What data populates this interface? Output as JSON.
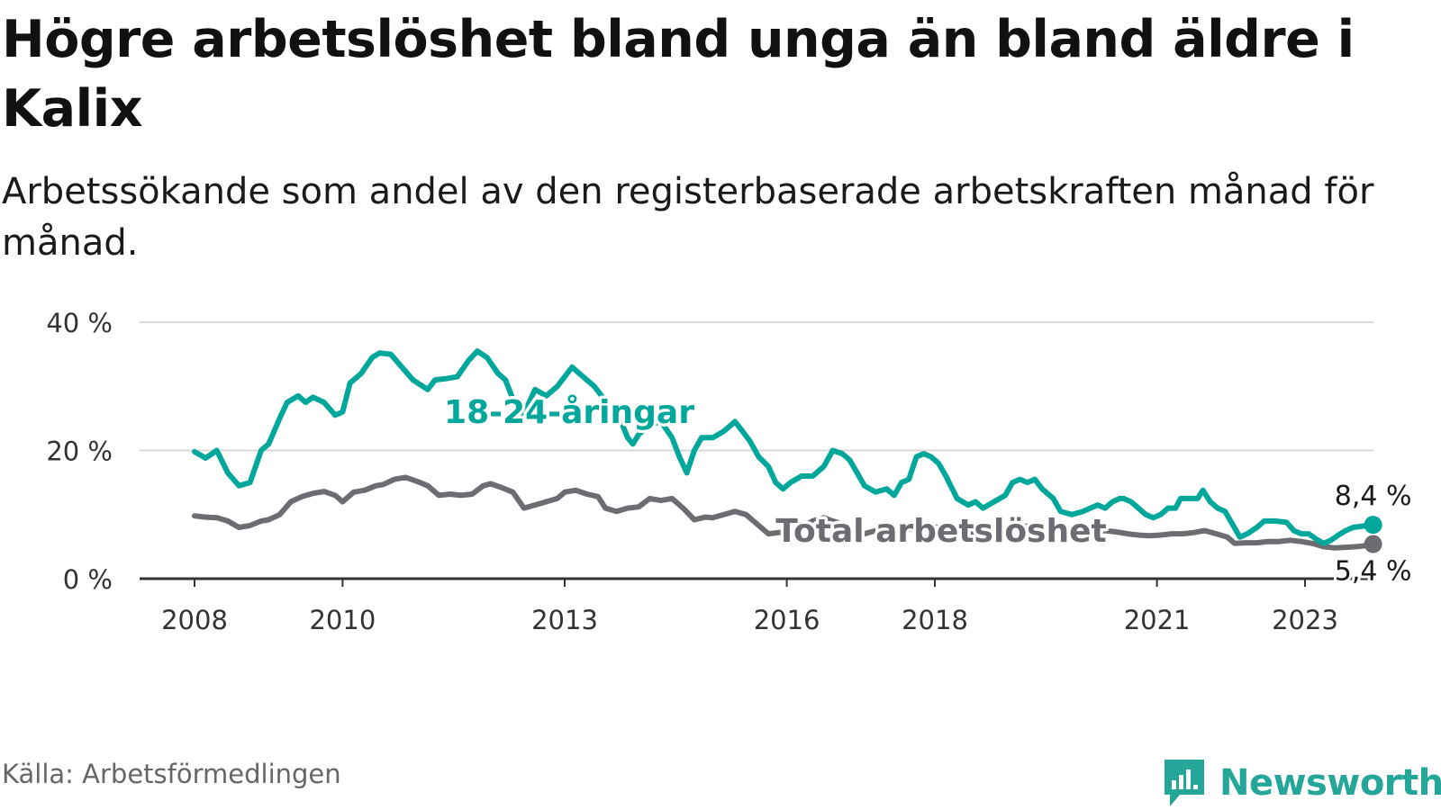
{
  "title": "Högre arbetslöshet bland unga än bland äldre i Kalix",
  "subtitle": "Arbetssökande som andel av den registerbaserade arbetskraften månad för månad.",
  "source": "Källa: Arbetsförmedlingen",
  "brand": {
    "name": "Newsworthy",
    "color": "#24a699"
  },
  "colors": {
    "youth": "#00a79a",
    "total": "#6d6c73",
    "grid": "#d9d9d9",
    "axis": "#333333"
  },
  "chart_data": {
    "type": "line",
    "xlabel": "",
    "ylabel": "",
    "ylim": [
      0,
      40
    ],
    "xlim": [
      2008,
      2023.25
    ],
    "y_ticks": [
      0,
      20,
      40
    ],
    "y_tick_labels": [
      "0 %",
      "20 %",
      "40 %"
    ],
    "x_ticks": [
      2008,
      2010,
      2013,
      2016,
      2018,
      2021,
      2023
    ],
    "x_tick_labels": [
      "2008",
      "2010",
      "2013",
      "2016",
      "2018",
      "2021",
      "2023"
    ],
    "series": [
      {
        "name": "18-24-åringar",
        "label": "18-24-åringar",
        "end_label": "8,4 %",
        "points": [
          [
            2008.0,
            19.8
          ],
          [
            2008.15,
            18.8
          ],
          [
            2008.3,
            20.0
          ],
          [
            2008.45,
            16.5
          ],
          [
            2008.6,
            14.5
          ],
          [
            2008.75,
            15.0
          ],
          [
            2008.9,
            20.0
          ],
          [
            2009.0,
            21.0
          ],
          [
            2009.15,
            25.0
          ],
          [
            2009.25,
            27.5
          ],
          [
            2009.4,
            28.5
          ],
          [
            2009.5,
            27.5
          ],
          [
            2009.6,
            28.3
          ],
          [
            2009.75,
            27.5
          ],
          [
            2009.9,
            25.5
          ],
          [
            2010.0,
            26.0
          ],
          [
            2010.1,
            30.5
          ],
          [
            2010.25,
            32.0
          ],
          [
            2010.4,
            34.5
          ],
          [
            2010.5,
            35.2
          ],
          [
            2010.65,
            35.0
          ],
          [
            2010.8,
            33.0
          ],
          [
            2010.95,
            31.0
          ],
          [
            2011.15,
            29.5
          ],
          [
            2011.25,
            31.0
          ],
          [
            2011.4,
            31.2
          ],
          [
            2011.55,
            31.5
          ],
          [
            2011.7,
            34.0
          ],
          [
            2011.82,
            35.5
          ],
          [
            2011.95,
            34.5
          ],
          [
            2012.1,
            32.0
          ],
          [
            2012.2,
            31.0
          ],
          [
            2012.3,
            28.0
          ],
          [
            2012.4,
            25.0
          ],
          [
            2012.5,
            27.0
          ],
          [
            2012.6,
            29.5
          ],
          [
            2012.75,
            28.5
          ],
          [
            2012.9,
            30.0
          ],
          [
            2013.0,
            31.5
          ],
          [
            2013.1,
            33.0
          ],
          [
            2013.25,
            31.5
          ],
          [
            2013.4,
            30.0
          ],
          [
            2013.5,
            28.5
          ],
          [
            2013.6,
            27.0
          ],
          [
            2013.7,
            26.0
          ],
          [
            2013.78,
            24.0
          ],
          [
            2013.85,
            22.0
          ],
          [
            2013.92,
            21.0
          ],
          [
            2014.0,
            22.5
          ],
          [
            2014.15,
            24.0
          ],
          [
            2014.3,
            24.5
          ],
          [
            2014.45,
            22.0
          ],
          [
            2014.55,
            19.0
          ],
          [
            2014.65,
            16.5
          ],
          [
            2014.75,
            20.0
          ],
          [
            2014.85,
            22.0
          ],
          [
            2015.0,
            22.0
          ],
          [
            2015.15,
            23.0
          ],
          [
            2015.3,
            24.5
          ],
          [
            2015.4,
            23.0
          ],
          [
            2015.5,
            21.5
          ],
          [
            2015.62,
            19.0
          ],
          [
            2015.75,
            17.5
          ],
          [
            2015.85,
            15.0
          ],
          [
            2015.95,
            14.0
          ],
          [
            2016.05,
            15.0
          ],
          [
            2016.2,
            16.0
          ],
          [
            2016.35,
            16.0
          ],
          [
            2016.5,
            17.5
          ],
          [
            2016.62,
            20.0
          ],
          [
            2016.75,
            19.5
          ],
          [
            2016.85,
            18.5
          ],
          [
            2016.95,
            16.5
          ],
          [
            2017.05,
            14.5
          ],
          [
            2017.2,
            13.5
          ],
          [
            2017.35,
            14.0
          ],
          [
            2017.45,
            13.0
          ],
          [
            2017.55,
            15.0
          ],
          [
            2017.65,
            15.5
          ],
          [
            2017.75,
            19.0
          ],
          [
            2017.85,
            19.5
          ],
          [
            2017.95,
            19.0
          ],
          [
            2018.05,
            18.0
          ],
          [
            2018.15,
            16.0
          ],
          [
            2018.3,
            12.5
          ],
          [
            2018.45,
            11.5
          ],
          [
            2018.55,
            12.0
          ],
          [
            2018.65,
            11.0
          ],
          [
            2018.8,
            12.0
          ],
          [
            2018.95,
            13.0
          ],
          [
            2019.05,
            15.0
          ],
          [
            2019.15,
            15.5
          ],
          [
            2019.25,
            15.0
          ],
          [
            2019.35,
            15.5
          ],
          [
            2019.45,
            14.0
          ],
          [
            2019.6,
            12.5
          ],
          [
            2019.7,
            10.5
          ],
          [
            2019.85,
            10.0
          ],
          [
            2020.0,
            10.5
          ],
          [
            2020.1,
            11.0
          ],
          [
            2020.2,
            11.5
          ],
          [
            2020.3,
            11.0
          ],
          [
            2020.4,
            12.0
          ],
          [
            2020.5,
            12.5
          ],
          [
            2020.55,
            12.5
          ],
          [
            2020.65,
            12.0
          ],
          [
            2020.75,
            11.0
          ],
          [
            2020.85,
            10.0
          ],
          [
            2020.95,
            9.5
          ],
          [
            2021.05,
            10.0
          ],
          [
            2021.15,
            11.0
          ],
          [
            2021.25,
            11.0
          ],
          [
            2021.32,
            12.5
          ],
          [
            2021.45,
            12.5
          ],
          [
            2021.55,
            12.5
          ],
          [
            2021.62,
            13.8
          ],
          [
            2021.72,
            12.0
          ],
          [
            2021.82,
            11.0
          ],
          [
            2021.92,
            10.5
          ],
          [
            2022.02,
            8.5
          ],
          [
            2022.12,
            6.5
          ],
          [
            2022.22,
            7.0
          ],
          [
            2022.35,
            8.0
          ],
          [
            2022.45,
            9.0
          ],
          [
            2022.6,
            9.0
          ],
          [
            2022.75,
            8.8
          ],
          [
            2022.85,
            7.5
          ],
          [
            2022.95,
            7.0
          ],
          [
            2023.05,
            7.0
          ],
          [
            2023.15,
            6.2
          ],
          [
            2023.25,
            5.5
          ],
          [
            2023.35,
            6.0
          ],
          [
            2023.45,
            6.8
          ],
          [
            2023.55,
            7.5
          ],
          [
            2023.65,
            8.0
          ],
          [
            2023.78,
            8.2
          ],
          [
            2023.92,
            8.4
          ]
        ]
      },
      {
        "name": "Total arbetslöshet",
        "label": "Total arbetslöshet",
        "end_label": "5,4 %",
        "points": [
          [
            2008.0,
            9.8
          ],
          [
            2008.15,
            9.6
          ],
          [
            2008.3,
            9.5
          ],
          [
            2008.45,
            9.0
          ],
          [
            2008.6,
            8.0
          ],
          [
            2008.75,
            8.3
          ],
          [
            2008.9,
            9.0
          ],
          [
            2009.0,
            9.2
          ],
          [
            2009.15,
            10.0
          ],
          [
            2009.3,
            12.0
          ],
          [
            2009.45,
            12.8
          ],
          [
            2009.6,
            13.3
          ],
          [
            2009.75,
            13.6
          ],
          [
            2009.9,
            13.0
          ],
          [
            2010.0,
            12.0
          ],
          [
            2010.15,
            13.5
          ],
          [
            2010.3,
            13.8
          ],
          [
            2010.45,
            14.5
          ],
          [
            2010.55,
            14.7
          ],
          [
            2010.7,
            15.5
          ],
          [
            2010.85,
            15.8
          ],
          [
            2011.0,
            15.2
          ],
          [
            2011.15,
            14.5
          ],
          [
            2011.3,
            13.0
          ],
          [
            2011.45,
            13.2
          ],
          [
            2011.6,
            13.0
          ],
          [
            2011.75,
            13.2
          ],
          [
            2011.9,
            14.5
          ],
          [
            2012.0,
            14.8
          ],
          [
            2012.15,
            14.2
          ],
          [
            2012.3,
            13.5
          ],
          [
            2012.45,
            11.0
          ],
          [
            2012.6,
            11.5
          ],
          [
            2012.75,
            12.0
          ],
          [
            2012.9,
            12.5
          ],
          [
            2013.0,
            13.5
          ],
          [
            2013.15,
            13.8
          ],
          [
            2013.3,
            13.2
          ],
          [
            2013.45,
            12.8
          ],
          [
            2013.55,
            11.0
          ],
          [
            2013.7,
            10.5
          ],
          [
            2013.85,
            11.0
          ],
          [
            2014.0,
            11.2
          ],
          [
            2014.15,
            12.5
          ],
          [
            2014.3,
            12.2
          ],
          [
            2014.45,
            12.5
          ],
          [
            2014.6,
            11.0
          ],
          [
            2014.75,
            9.2
          ],
          [
            2014.9,
            9.6
          ],
          [
            2015.0,
            9.5
          ],
          [
            2015.15,
            10.0
          ],
          [
            2015.3,
            10.5
          ],
          [
            2015.45,
            10.0
          ],
          [
            2015.6,
            8.5
          ],
          [
            2015.75,
            7.0
          ],
          [
            2015.9,
            7.2
          ],
          [
            2016.05,
            7.5
          ],
          [
            2016.2,
            8.0
          ],
          [
            2016.35,
            9.0
          ],
          [
            2016.5,
            9.5
          ],
          [
            2016.62,
            9.0
          ],
          [
            2016.75,
            8.5
          ],
          [
            2016.9,
            7.5
          ],
          [
            2017.05,
            7.0
          ],
          [
            2017.2,
            7.5
          ],
          [
            2017.35,
            7.5
          ],
          [
            2017.45,
            7.0
          ],
          [
            2017.6,
            7.5
          ],
          [
            2017.75,
            8.0
          ],
          [
            2017.9,
            8.2
          ],
          [
            2018.05,
            8.0
          ],
          [
            2018.2,
            7.5
          ],
          [
            2018.35,
            7.2
          ],
          [
            2018.5,
            7.0
          ],
          [
            2018.65,
            7.0
          ],
          [
            2018.8,
            7.2
          ],
          [
            2018.95,
            7.5
          ],
          [
            2019.1,
            8.0
          ],
          [
            2019.25,
            8.2
          ],
          [
            2019.4,
            8.0
          ],
          [
            2019.55,
            7.5
          ],
          [
            2019.7,
            7.2
          ],
          [
            2019.85,
            7.0
          ],
          [
            2020.0,
            7.0
          ],
          [
            2020.15,
            7.2
          ],
          [
            2020.3,
            7.5
          ],
          [
            2020.45,
            7.3
          ],
          [
            2020.6,
            7.0
          ],
          [
            2020.75,
            6.8
          ],
          [
            2020.9,
            6.7
          ],
          [
            2021.05,
            6.8
          ],
          [
            2021.2,
            7.0
          ],
          [
            2021.35,
            7.0
          ],
          [
            2021.5,
            7.2
          ],
          [
            2021.65,
            7.5
          ],
          [
            2021.8,
            7.0
          ],
          [
            2021.95,
            6.5
          ],
          [
            2022.05,
            5.5
          ],
          [
            2022.2,
            5.6
          ],
          [
            2022.35,
            5.6
          ],
          [
            2022.5,
            5.8
          ],
          [
            2022.65,
            5.8
          ],
          [
            2022.8,
            6.0
          ],
          [
            2022.95,
            5.8
          ],
          [
            2023.1,
            5.5
          ],
          [
            2023.25,
            5.0
          ],
          [
            2023.4,
            4.8
          ],
          [
            2023.55,
            4.9
          ],
          [
            2023.7,
            5.0
          ],
          [
            2023.85,
            5.2
          ],
          [
            2023.92,
            5.4
          ]
        ]
      }
    ]
  }
}
